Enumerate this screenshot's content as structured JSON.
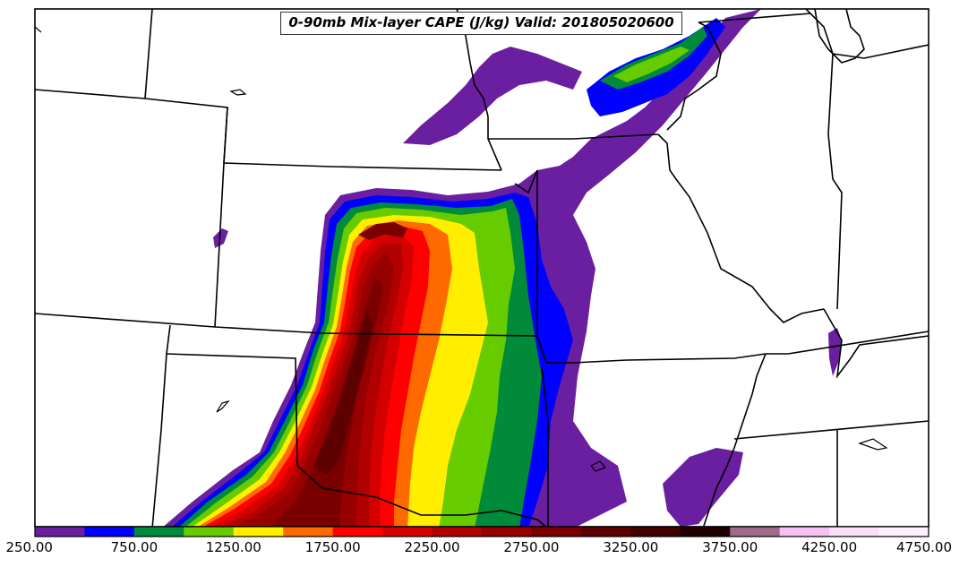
{
  "map": {
    "title": "0-90mb Mix-layer CAPE (J/kg) Valid: 201805020600",
    "variable": "0-90mb Mix-layer CAPE",
    "units": "J/kg",
    "valid_time": "201805020600",
    "region": "Central United States (Great Plains and Midwest)"
  },
  "colorbar": {
    "min": 250,
    "max": 4750,
    "interval": 250,
    "colors": [
      "#6a1fa0",
      "#0000ff",
      "#008a3a",
      "#66cc00",
      "#ffee00",
      "#ff6a00",
      "#ff0000",
      "#d40000",
      "#b00000",
      "#960000",
      "#7a0000",
      "#5c0000",
      "#400000",
      "#1f0000",
      "#a06a8a",
      "#f7c0f2",
      "#fbe0fa",
      "#fff0ff"
    ],
    "tick_labels": [
      "250.00",
      "750.00",
      "1250.00",
      "1750.00",
      "2250.00",
      "2750.00",
      "3250.00",
      "3750.00",
      "4250.00",
      "4750.00"
    ]
  }
}
